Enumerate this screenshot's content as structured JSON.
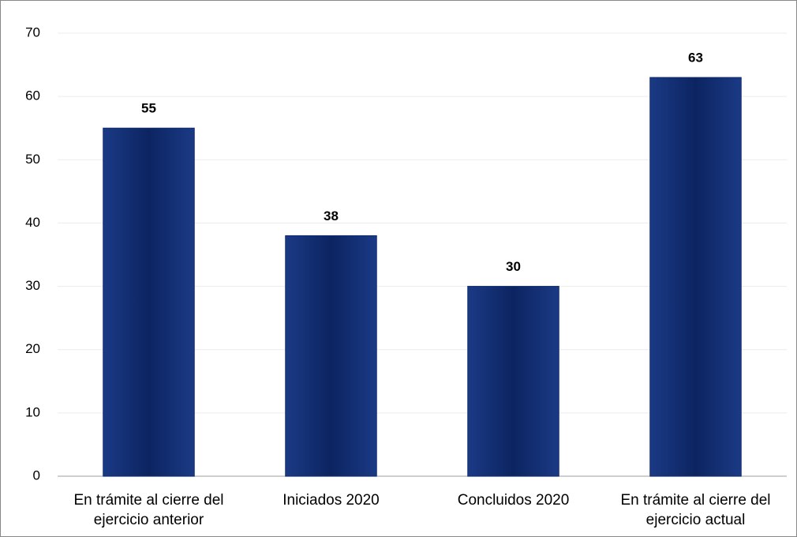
{
  "chart_data": {
    "type": "bar",
    "categories": [
      "En trámite al cierre del ejercicio anterior",
      "Iniciados 2020",
      "Concluidos 2020",
      "En trámite al cierre del ejercicio actual"
    ],
    "values": [
      55,
      38,
      30,
      63
    ],
    "color": "#0f2a6e",
    "ylim": [
      0,
      70
    ],
    "yticks": [
      0,
      10,
      20,
      30,
      40,
      50,
      60,
      70
    ],
    "grid": true
  }
}
